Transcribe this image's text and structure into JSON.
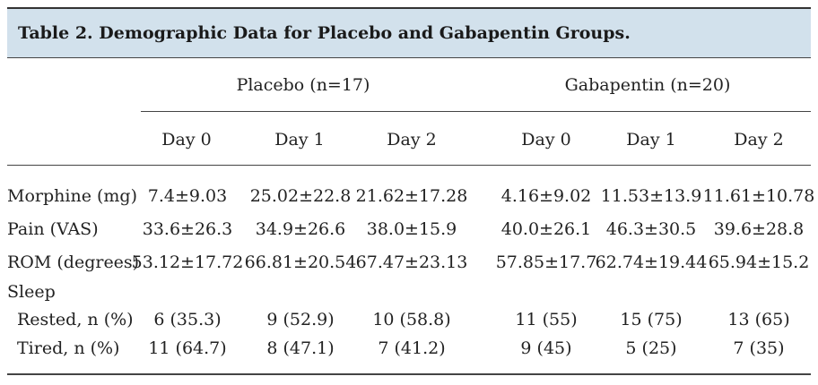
{
  "table": {
    "title": "Table 2. Demographic Data for Placebo and Gabapentin Groups.",
    "groups": [
      "Placebo (n=17)",
      "Gabapentin (n=20)"
    ],
    "day_headers": [
      "Day 0",
      "Day 1",
      "Day 2",
      "Day 0",
      "Day 1",
      "Day 2"
    ],
    "rows": [
      {
        "label": "Morphine (mg)",
        "cells": [
          "7.4±9.03",
          "25.02±22.8",
          "21.62±17.28",
          "4.16±9.02",
          "11.53±13.9",
          "11.61±10.78"
        ]
      },
      {
        "label": "Pain (VAS)",
        "cells": [
          "33.6±26.3",
          "34.9±26.6",
          "38.0±15.9",
          "40.0±26.1",
          "46.3±30.5",
          "39.6±28.8"
        ]
      },
      {
        "label": "ROM (degrees)",
        "cells": [
          "53.12±17.72",
          "66.81±20.54",
          "67.47±23.13",
          "57.85±17.7",
          "62.74±19.44",
          "65.94±15.2"
        ]
      },
      {
        "label": "Sleep",
        "cells": []
      },
      {
        "label": "Rested, n (%)",
        "cells": [
          "6 (35.3)",
          "9 (52.9)",
          "10 (58.8)",
          "11 (55)",
          "15 (75)",
          "13 (65)"
        ]
      },
      {
        "label": "Tired, n (%)",
        "cells": [
          "11 (64.7)",
          "8 (47.1)",
          "7 (41.2)",
          "9 (45)",
          "5 (25)",
          "7 (35)"
        ]
      }
    ]
  }
}
